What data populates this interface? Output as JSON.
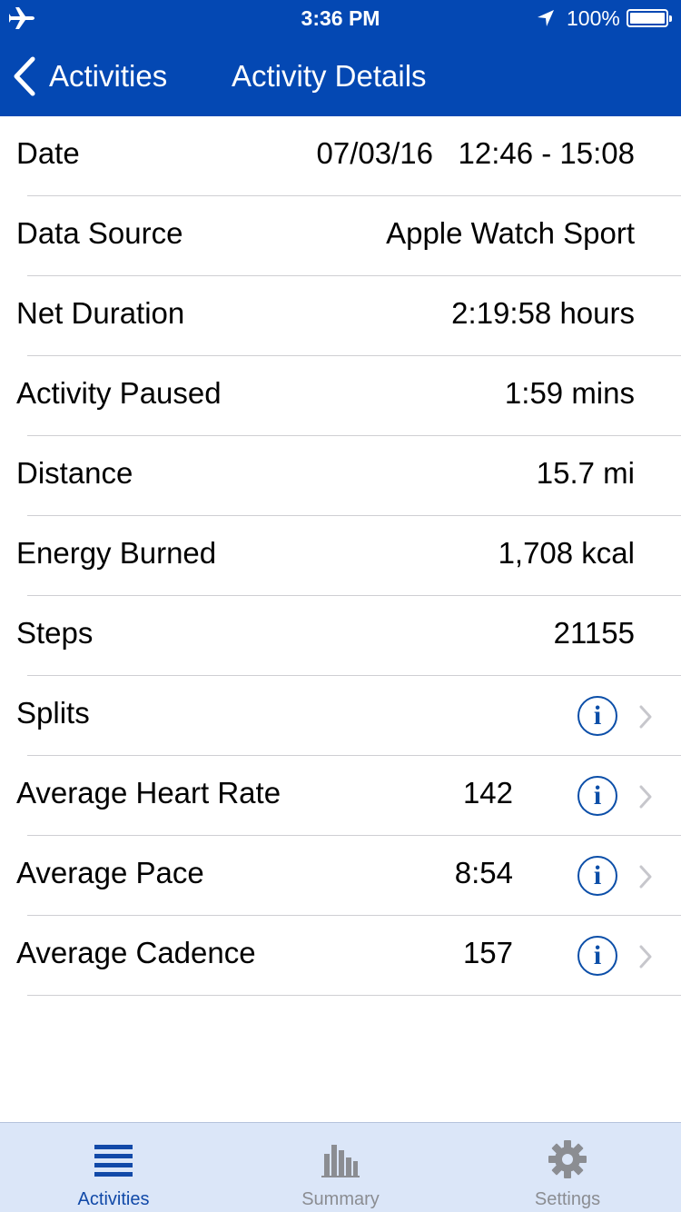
{
  "colors": {
    "accent": "#0448b3",
    "tab_active": "#1149a8",
    "tab_inactive": "#8b8d92",
    "info": "#0b4ea8"
  },
  "status_bar": {
    "time": "3:36 PM",
    "battery": "100%",
    "icons": [
      "airplane-icon",
      "location-arrow-icon",
      "battery-icon"
    ]
  },
  "nav": {
    "back_label": "Activities",
    "title": "Activity Details"
  },
  "rows": [
    {
      "label": "Date",
      "value": "07/03/16   12:46 - 15:08"
    },
    {
      "label": "Data Source",
      "value": "Apple Watch Sport"
    },
    {
      "label": "Net Duration",
      "value": "2:19:58 hours"
    },
    {
      "label": "Activity Paused",
      "value": "1:59 mins"
    },
    {
      "label": "Distance",
      "value": "15.7 mi"
    },
    {
      "label": "Energy Burned",
      "value": "1,708 kcal"
    },
    {
      "label": "Steps",
      "value": "21155"
    },
    {
      "label": "Splits",
      "value": "",
      "info_glyph": "i"
    },
    {
      "label": "Average Heart Rate",
      "value": "142",
      "info_glyph": "i"
    },
    {
      "label": "Average Pace",
      "value": "8:54",
      "info_glyph": "i"
    },
    {
      "label": "Average Cadence",
      "value": "157",
      "info_glyph": "i"
    }
  ],
  "tabs": [
    {
      "label": "Activities",
      "icon": "list-icon",
      "active": true
    },
    {
      "label": "Summary",
      "icon": "bar-chart-icon",
      "active": false
    },
    {
      "label": "Settings",
      "icon": "gear-icon",
      "active": false
    }
  ]
}
